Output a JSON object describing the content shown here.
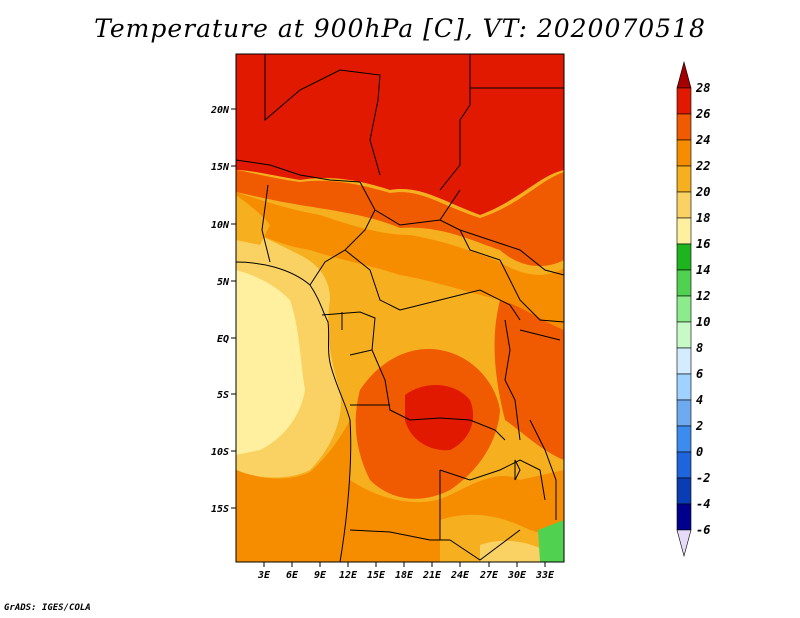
{
  "title": "Temperature at 900hPa [C], VT: 2020070518",
  "credit": "GrADS: IGES/COLA",
  "map": {
    "lat_labels": [
      "20N",
      "15N",
      "10N",
      "5N",
      "EQ",
      "5S",
      "10S",
      "15S"
    ],
    "lon_labels": [
      "3E",
      "6E",
      "9E",
      "12E",
      "15E",
      "18E",
      "21E",
      "24E",
      "27E",
      "30E",
      "33E"
    ]
  },
  "colorbar": {
    "labels": [
      "28",
      "26",
      "24",
      "22",
      "20",
      "18",
      "16",
      "14",
      "12",
      "10",
      "8",
      "6",
      "4",
      "2",
      "0",
      "-2",
      "-4",
      "-6"
    ],
    "colors": [
      "#a50000",
      "#e11900",
      "#f05a00",
      "#f68c00",
      "#f6af1e",
      "#fad264",
      "#fff0a0",
      "#1eb41e",
      "#50d250",
      "#8cec8c",
      "#c8fac8",
      "#d4ecff",
      "#a0d2ff",
      "#6eaaf0",
      "#3c8cf0",
      "#1e64dc",
      "#0a3cb4",
      "#00008c",
      "#e6dcfa"
    ]
  }
}
